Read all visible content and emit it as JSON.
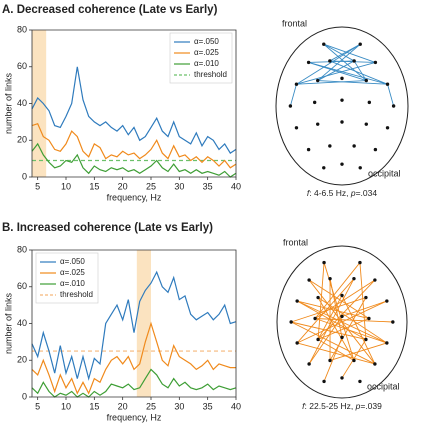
{
  "chart_data": [
    {
      "type": "line",
      "title": "A. Decreased coherence (Late vs Early)",
      "xlabel": "frequency, Hz",
      "ylabel": "number of links",
      "x": [
        4,
        5,
        6,
        7,
        8,
        9,
        10,
        11,
        12,
        13,
        14,
        15,
        16,
        17,
        18,
        19,
        20,
        21,
        22,
        23,
        24,
        25,
        26,
        27,
        28,
        29,
        30,
        31,
        32,
        33,
        34,
        35,
        36,
        37,
        38,
        39,
        40
      ],
      "series": [
        {
          "name": "α=.050",
          "color": "#2f7bbd",
          "values": [
            37,
            43,
            40,
            36,
            28,
            27,
            33,
            40,
            60,
            42,
            33,
            30,
            28,
            30,
            27,
            25,
            28,
            23,
            27,
            20,
            22,
            27,
            32,
            25,
            22,
            30,
            22,
            20,
            18,
            24,
            17,
            22,
            20,
            15,
            18,
            13,
            15
          ]
        },
        {
          "name": "α=.025",
          "color": "#f08a1c",
          "values": [
            28,
            29,
            22,
            20,
            15,
            14,
            18,
            25,
            22,
            14,
            11,
            18,
            16,
            10,
            12,
            11,
            14,
            12,
            13,
            10,
            12,
            15,
            20,
            13,
            10,
            17,
            11,
            12,
            9,
            11,
            8,
            11,
            9,
            6,
            9,
            5,
            7
          ]
        },
        {
          "name": "α=.010",
          "color": "#3e9e35",
          "values": [
            14,
            18,
            12,
            8,
            5,
            6,
            9,
            8,
            12,
            5,
            2,
            6,
            4,
            3,
            5,
            4,
            5,
            3,
            4,
            2,
            4,
            6,
            9,
            5,
            3,
            7,
            3,
            4,
            2,
            4,
            2,
            3,
            2,
            1,
            3,
            0,
            2
          ]
        }
      ],
      "threshold": {
        "name": "threshold",
        "value": 9,
        "color": "#6cc06a"
      },
      "highlight": [
        4,
        6.5
      ],
      "highlight_color": "#fbe3c0",
      "xlim": [
        4,
        40
      ],
      "xticks": [
        5,
        10,
        15,
        20,
        25,
        30,
        35,
        40
      ],
      "ylim": [
        0,
        80
      ],
      "yticks": [
        0,
        20,
        40,
        60,
        80
      ],
      "legend": "upper right"
    },
    {
      "type": "line",
      "title": "B. Increased coherence (Late vs Early)",
      "xlabel": "frequency, Hz",
      "ylabel": "number of links",
      "x": [
        4,
        5,
        6,
        7,
        8,
        9,
        10,
        11,
        12,
        13,
        14,
        15,
        16,
        17,
        18,
        19,
        20,
        21,
        22,
        23,
        24,
        25,
        26,
        27,
        28,
        29,
        30,
        31,
        32,
        33,
        34,
        35,
        36,
        37,
        38,
        39,
        40
      ],
      "series": [
        {
          "name": "α=.050",
          "color": "#2f7bbd",
          "values": [
            29,
            22,
            35,
            25,
            13,
            28,
            13,
            22,
            10,
            22,
            10,
            21,
            18,
            40,
            45,
            50,
            42,
            53,
            35,
            52,
            58,
            62,
            68,
            60,
            57,
            65,
            53,
            55,
            45,
            42,
            44,
            46,
            42,
            45,
            50,
            40,
            41
          ]
        },
        {
          "name": "α=.025",
          "color": "#f08a1c",
          "values": [
            15,
            12,
            20,
            12,
            3,
            12,
            5,
            10,
            2,
            8,
            2,
            10,
            8,
            15,
            20,
            22,
            18,
            22,
            15,
            18,
            30,
            40,
            30,
            20,
            17,
            28,
            22,
            20,
            18,
            15,
            17,
            20,
            15,
            18,
            17,
            16,
            16
          ]
        },
        {
          "name": "α=.010",
          "color": "#3e9e35",
          "values": [
            5,
            2,
            8,
            3,
            0,
            2,
            1,
            3,
            0,
            2,
            0,
            3,
            1,
            3,
            7,
            6,
            5,
            7,
            4,
            5,
            10,
            15,
            12,
            7,
            5,
            10,
            6,
            8,
            5,
            4,
            5,
            7,
            4,
            6,
            5,
            4,
            5
          ]
        }
      ],
      "threshold": {
        "name": "threshold",
        "value": 25,
        "color": "#f5b77a"
      },
      "highlight": [
        22.5,
        25
      ],
      "highlight_color": "#fbe3c0",
      "xlim": [
        4,
        40
      ],
      "xticks": [
        5,
        10,
        15,
        20,
        25,
        30,
        35,
        40
      ],
      "ylim": [
        0,
        80
      ],
      "yticks": [
        0,
        20,
        40,
        60,
        80
      ],
      "legend": "upper left"
    }
  ],
  "head_maps": [
    {
      "top_label": "frontal",
      "bottom_label": "occipital",
      "caption": [
        "f",
        ": 4-6.5 Hz, ",
        "p",
        "=.034"
      ],
      "edge_color": "#3a8cc4"
    },
    {
      "top_label": "frontal",
      "bottom_label": "occipital",
      "caption": [
        "f",
        ": 22.5-25 Hz, ",
        "p",
        "=.039"
      ],
      "edge_color": "#f08a1c"
    }
  ]
}
